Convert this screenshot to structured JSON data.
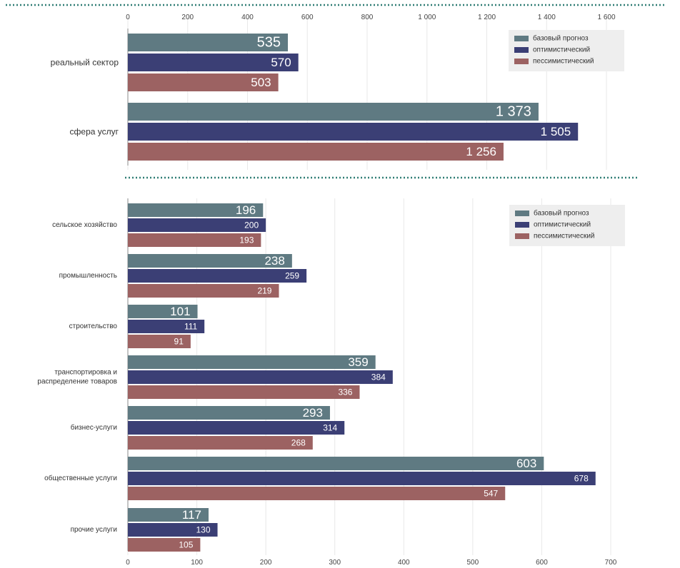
{
  "colors": {
    "base": "#5f7a82",
    "optimistic": "#3b3f75",
    "pessimistic": "#9c6262",
    "divider": "#2f7d74",
    "grid": "#e8e8e8"
  },
  "chart_data": [
    {
      "type": "bar",
      "orientation": "horizontal",
      "title": "",
      "xlabel": "",
      "ylabel": "",
      "xlim": [
        0,
        1600
      ],
      "ticks": [
        0,
        200,
        400,
        600,
        800,
        1000,
        1200,
        1400,
        1600
      ],
      "tick_labels": [
        "0",
        "200",
        "400",
        "600",
        "800",
        "1 000",
        "1 200",
        "1 400",
        "1 600"
      ],
      "axis_position": "top",
      "grid": true,
      "legend_position": "top-right",
      "categories": [
        {
          "label": [
            "реальный сектор"
          ]
        },
        {
          "label": [
            "сфера услуг"
          ]
        }
      ],
      "series": [
        {
          "name": "базовый прогноз",
          "values": [
            535,
            1373
          ],
          "value_labels": [
            "535",
            "1 373"
          ]
        },
        {
          "name": "оптимистический",
          "values": [
            570,
            1505
          ],
          "value_labels": [
            "570",
            "1 505"
          ]
        },
        {
          "name": "пессимистический",
          "values": [
            503,
            1256
          ],
          "value_labels": [
            "503",
            "1 256"
          ]
        }
      ]
    },
    {
      "type": "bar",
      "orientation": "horizontal",
      "title": "",
      "xlabel": "",
      "ylabel": "",
      "xlim": [
        0,
        700
      ],
      "ticks": [
        0,
        100,
        200,
        300,
        400,
        500,
        600,
        700
      ],
      "tick_labels": [
        "0",
        "100",
        "200",
        "300",
        "400",
        "500",
        "600",
        "700"
      ],
      "axis_position": "bottom",
      "grid": true,
      "legend_position": "top-right",
      "categories": [
        {
          "label": [
            "сельское хозяйство"
          ]
        },
        {
          "label": [
            "промышленность"
          ]
        },
        {
          "label": [
            "строительство"
          ]
        },
        {
          "label": [
            "транспортировка и",
            "распределение товаров"
          ]
        },
        {
          "label": [
            "бизнес-услуги"
          ]
        },
        {
          "label": [
            "общественные услуги"
          ]
        },
        {
          "label": [
            "прочие услуги"
          ]
        }
      ],
      "series": [
        {
          "name": "базовый прогноз",
          "values": [
            196,
            238,
            101,
            359,
            293,
            603,
            117
          ],
          "value_labels": [
            "196",
            "238",
            "101",
            "359",
            "293",
            "603",
            "117"
          ]
        },
        {
          "name": "оптимистический",
          "values": [
            200,
            259,
            111,
            384,
            314,
            678,
            130
          ],
          "value_labels": [
            "200",
            "259",
            "111",
            "384",
            "314",
            "678",
            "130"
          ]
        },
        {
          "name": "пессимистический",
          "values": [
            193,
            219,
            91,
            336,
            268,
            547,
            105
          ],
          "value_labels": [
            "193",
            "219",
            "91",
            "336",
            "268",
            "547",
            "105"
          ]
        }
      ]
    }
  ]
}
